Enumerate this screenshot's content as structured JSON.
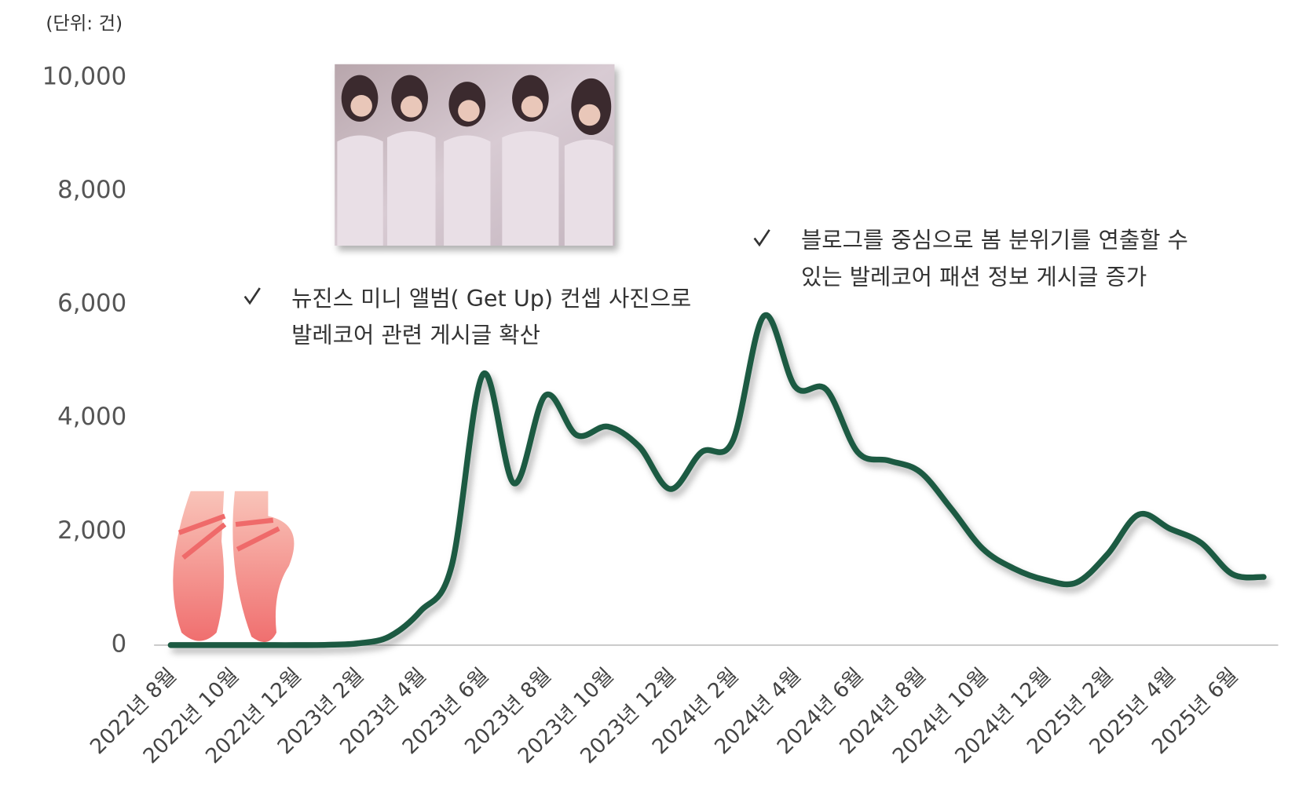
{
  "chart_data": {
    "type": "line",
    "unit_label": "(단위: 건)",
    "categories": [
      "2022년 8월",
      null,
      "2022년 10월",
      null,
      "2022년 12월",
      null,
      "2023년 2월",
      null,
      "2023년 4월",
      null,
      "2023년 6월",
      null,
      "2023년 8월",
      null,
      "2023년 10월",
      null,
      "2023년 12월",
      null,
      "2024년 2월",
      null,
      "2024년 4월",
      null,
      "2024년 6월",
      null,
      "2024년 8월",
      null,
      "2024년 10월",
      null,
      "2024년 12월",
      null,
      "2025년 2월",
      null,
      "2025년 4월",
      null,
      "2025년 6월",
      null
    ],
    "values": [
      0,
      0,
      0,
      0,
      0,
      5,
      30,
      150,
      600,
      1400,
      4770,
      2850,
      4400,
      3700,
      3850,
      3500,
      2750,
      3400,
      3600,
      5800,
      4550,
      4500,
      3400,
      3250,
      3050,
      2400,
      1700,
      1350,
      1150,
      1100,
      1600,
      2300,
      2050,
      1800,
      1250,
      1200
    ],
    "color": "#1f5a43",
    "ylim": [
      0,
      10000
    ],
    "yticks": [
      0,
      {
        "value": 2000,
        "label": "2,000"
      },
      {
        "value": 4000,
        "label": "4,000"
      },
      {
        "value": 6000,
        "label": "6,000"
      },
      {
        "value": 8000,
        "label": "8,000"
      },
      {
        "value": 10000,
        "label": "10,000"
      }
    ],
    "annotations": [
      {
        "lines": [
          "뉴진스 미니 앨범( Get Up) 컨셉 사진으로",
          "발레코어 관련 게시글 확산"
        ]
      },
      {
        "lines": [
          "블로그를 중심으로 봄 분위기를 연출할 수",
          "있는 발레코어 패션 정보 게시글 증가"
        ]
      }
    ]
  }
}
